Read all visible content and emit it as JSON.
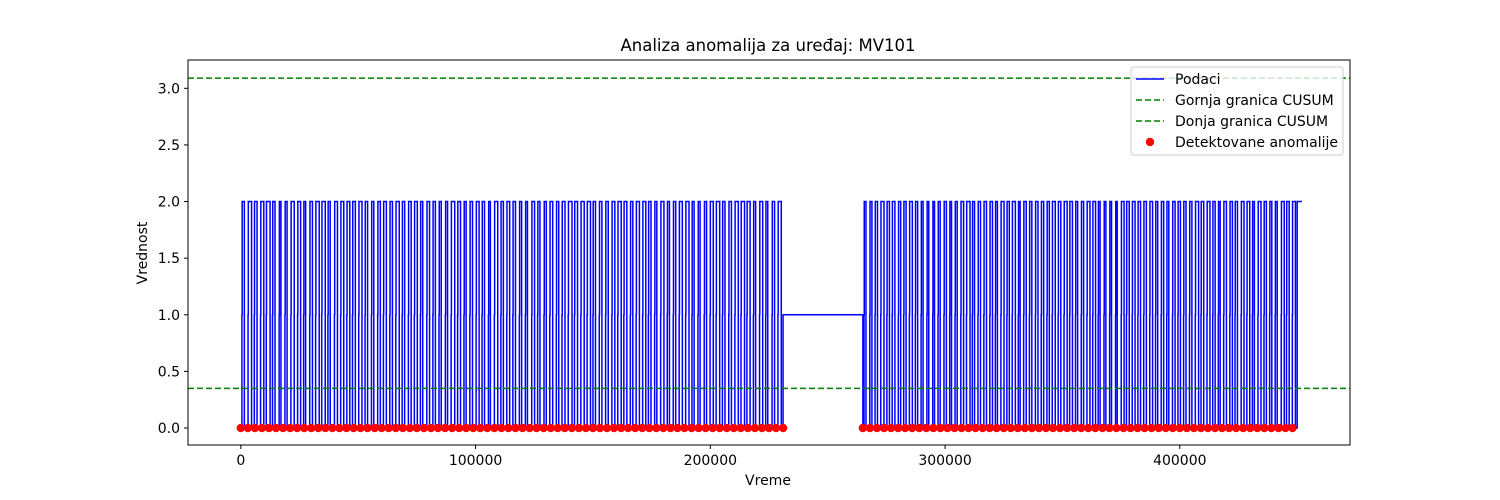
{
  "chart_data": {
    "type": "line",
    "title": "Analiza anomalija za uređaj: MV101",
    "xlabel": "Vreme",
    "ylabel": "Vrednost",
    "xlim": [
      -22500,
      472500
    ],
    "ylim": [
      -0.15,
      3.25
    ],
    "x_ticks": [
      0,
      100000,
      200000,
      300000,
      400000
    ],
    "x_tick_labels": [
      "0",
      "100000",
      "200000",
      "300000",
      "400000"
    ],
    "y_ticks": [
      0.0,
      0.5,
      1.0,
      1.5,
      2.0,
      2.5,
      3.0
    ],
    "y_tick_labels": [
      "0.0",
      "0.5",
      "1.0",
      "1.5",
      "2.0",
      "2.5",
      "3.0"
    ],
    "grid": false,
    "legend_position": "upper right",
    "series": [
      {
        "name": "Podaci",
        "kind": "step-line",
        "color": "#0000ff",
        "segments": [
          {
            "x_start": 0,
            "x_end": 231000,
            "levels": [
              0,
              1,
              2
            ],
            "cycle_count": 88
          },
          {
            "x_start": 231000,
            "x_end": 265000,
            "levels": [
              1
            ],
            "cycle_count": 0
          },
          {
            "x_start": 265000,
            "x_end": 450000,
            "levels": [
              0,
              1,
              2
            ],
            "cycle_count": 76
          }
        ]
      },
      {
        "name": "Gornja granica CUSUM",
        "kind": "hline",
        "y": 3.09,
        "color": "#008000",
        "dash": "dashed"
      },
      {
        "name": "Donja granica CUSUM",
        "kind": "hline",
        "y": 0.35,
        "color": "#008000",
        "dash": "dashed"
      },
      {
        "name": "Detektovane anomalije",
        "kind": "scatter",
        "color": "#ff0000",
        "y": 0,
        "x_ranges": [
          [
            0,
            231000
          ],
          [
            265000,
            450000
          ]
        ],
        "point_spacing": 3000
      }
    ]
  }
}
